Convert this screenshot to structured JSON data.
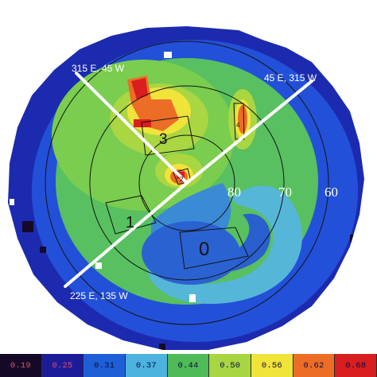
{
  "map": {
    "meridian_labels": [
      "315 E, 45 W",
      "45 E, 315 W",
      "225 E, 135 W"
    ],
    "latitude_labels": [
      "80",
      "70",
      "60"
    ],
    "region_labels": [
      "0",
      "1",
      "2",
      "3",
      "4"
    ]
  },
  "legend": {
    "bins": [
      {
        "value": "0.19",
        "color": "#140a28",
        "text_color": "#e0506a"
      },
      {
        "value": "0.25",
        "color": "#1c1c98",
        "text_color": "#e0506a"
      },
      {
        "value": "0.31",
        "color": "#1f5fd6",
        "text_color": "#0a0a40"
      },
      {
        "value": "0.37",
        "color": "#4cb2de",
        "text_color": "#0a0a40"
      },
      {
        "value": "0.44",
        "color": "#4fba58",
        "text_color": "#0a0a40"
      },
      {
        "value": "0.50",
        "color": "#a7d642",
        "text_color": "#0a0a40"
      },
      {
        "value": "0.56",
        "color": "#f0e33a",
        "text_color": "#0a0a40"
      },
      {
        "value": "0.62",
        "color": "#ec6d26",
        "text_color": "#0a0a40"
      },
      {
        "value": "0.68",
        "color": "#d81e1e",
        "text_color": "#0a0a40"
      }
    ]
  }
}
